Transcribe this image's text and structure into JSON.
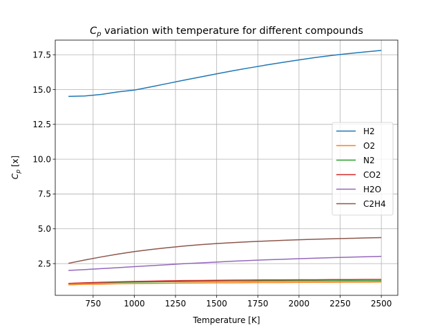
{
  "chart_data": {
    "type": "line",
    "title_main": "C",
    "title_sub": "p",
    "title_rest": " variation with temperature for different compounds",
    "xlabel": "Temperature [K]",
    "ylabel_main": "C",
    "ylabel_sub": "p",
    "ylabel_rest": " [x]",
    "xlim": [
      520,
      2600
    ],
    "ylim": [
      0.22,
      18.55
    ],
    "xticks": [
      750,
      1000,
      1250,
      1500,
      1750,
      2000,
      2250,
      2500
    ],
    "xtick_labels": [
      "750",
      "1000",
      "1250",
      "1500",
      "1750",
      "2000",
      "2250",
      "2500"
    ],
    "yticks": [
      2.5,
      5.0,
      7.5,
      10.0,
      12.5,
      15.0,
      17.5
    ],
    "ytick_labels": [
      "2.5",
      "5.0",
      "7.5",
      "10.0",
      "12.5",
      "15.0",
      "17.5"
    ],
    "grid": true,
    "legend_position": "center-right",
    "x": [
      600,
      700,
      800,
      900,
      1000,
      1100,
      1200,
      1300,
      1400,
      1500,
      1600,
      1700,
      1800,
      1900,
      2000,
      2100,
      2200,
      2300,
      2400,
      2500
    ],
    "series": [
      {
        "name": "H2",
        "color": "#1f77b4",
        "values": [
          14.51,
          14.54,
          14.65,
          14.83,
          14.96,
          15.19,
          15.43,
          15.67,
          15.9,
          16.13,
          16.35,
          16.56,
          16.76,
          16.95,
          17.13,
          17.3,
          17.45,
          17.58,
          17.7,
          17.81
        ]
      },
      {
        "name": "O2",
        "color": "#ff7f0e",
        "values": [
          0.98,
          1.01,
          1.03,
          1.05,
          1.07,
          1.08,
          1.09,
          1.1,
          1.11,
          1.12,
          1.12,
          1.13,
          1.14,
          1.14,
          1.15,
          1.16,
          1.16,
          1.17,
          1.17,
          1.18
        ]
      },
      {
        "name": "N2",
        "color": "#2ca02c",
        "values": [
          1.07,
          1.1,
          1.12,
          1.15,
          1.17,
          1.18,
          1.2,
          1.21,
          1.22,
          1.23,
          1.24,
          1.24,
          1.25,
          1.25,
          1.26,
          1.26,
          1.26,
          1.27,
          1.27,
          1.27
        ]
      },
      {
        "name": "CO2",
        "color": "#d62728",
        "values": [
          1.08,
          1.12,
          1.16,
          1.19,
          1.22,
          1.24,
          1.26,
          1.28,
          1.29,
          1.3,
          1.31,
          1.32,
          1.33,
          1.33,
          1.34,
          1.34,
          1.35,
          1.35,
          1.36,
          1.36
        ]
      },
      {
        "name": "H2O",
        "color": "#9467bd",
        "values": [
          2.01,
          2.07,
          2.14,
          2.21,
          2.28,
          2.35,
          2.42,
          2.49,
          2.55,
          2.61,
          2.67,
          2.72,
          2.77,
          2.81,
          2.85,
          2.89,
          2.93,
          2.96,
          2.99,
          3.02
        ]
      },
      {
        "name": "C2H4",
        "color": "#8c564b",
        "values": [
          2.52,
          2.76,
          2.98,
          3.18,
          3.36,
          3.51,
          3.64,
          3.76,
          3.86,
          3.94,
          4.01,
          4.07,
          4.12,
          4.17,
          4.21,
          4.25,
          4.28,
          4.31,
          4.34,
          4.37
        ]
      }
    ]
  }
}
